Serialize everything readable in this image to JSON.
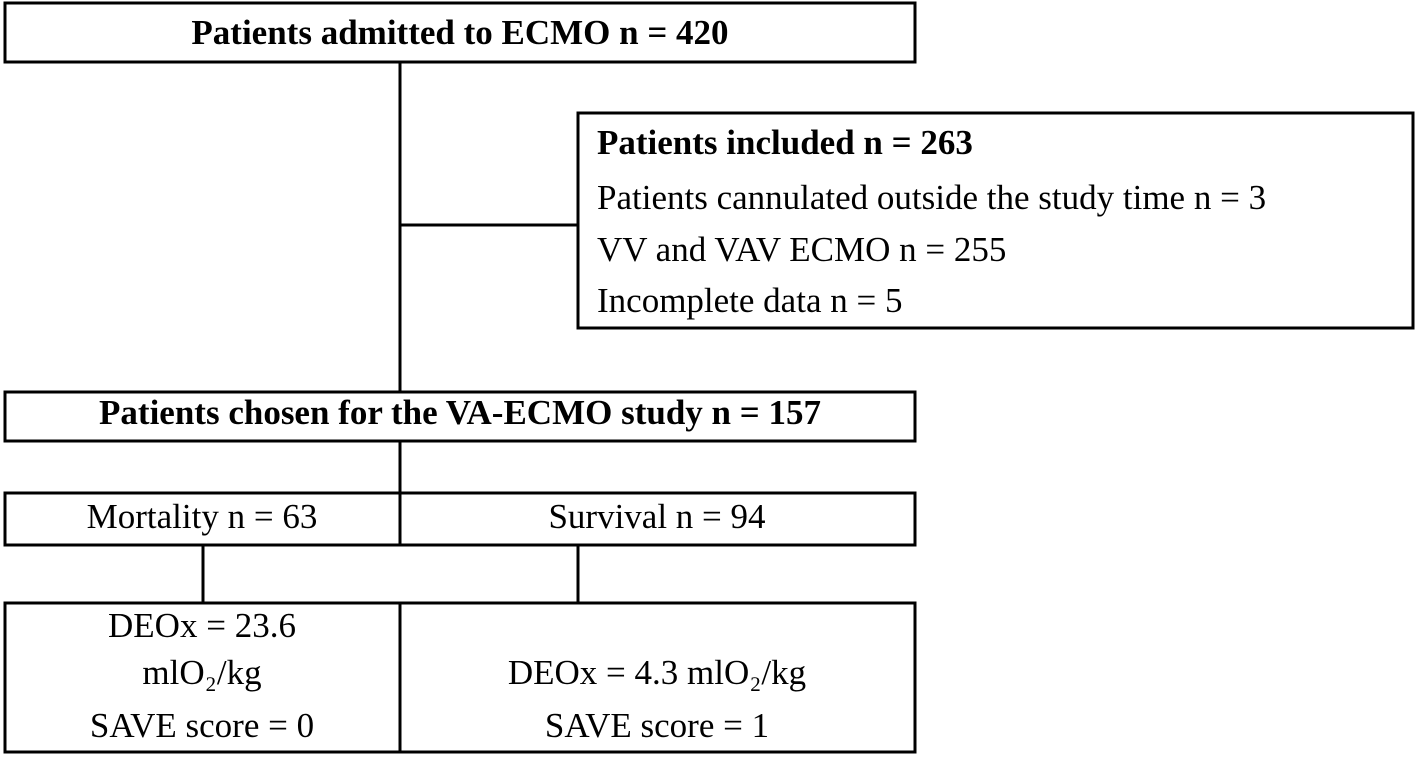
{
  "nodes": [
    {
      "label": "Patients admitted to ECMO n = 420"
    },
    {
      "title": "Patients included n = 263",
      "items": [
        "Patients cannulated outside the study time n = 3",
        "VV and VAV ECMO n = 255",
        "Incomplete data n = 5"
      ]
    },
    {
      "label": "Patients chosen for the VA-ECMO study n = 157"
    },
    {
      "groups": [
        {
          "label": "Mortality n = 63",
          "lines": [
            "DEOx = 23.6",
            "mlO₂/kg",
            "SAVE score = 0"
          ]
        },
        {
          "label": "Survival n = 94",
          "lines": [
            "DEOx = 4.3 mlO₂/kg",
            "SAVE score = 1"
          ]
        }
      ]
    }
  ]
}
